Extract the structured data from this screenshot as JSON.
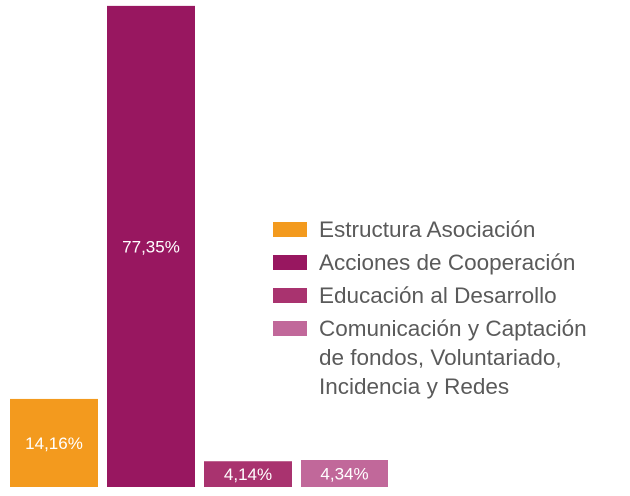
{
  "chart_data": {
    "type": "bar",
    "categories": [
      "Estructura Asociación",
      "Acciones de Cooperación",
      "Educación al Desarrollo",
      "Comunicación y Captación de fondos, Voluntariado, Incidencia y Redes"
    ],
    "values": [
      14.16,
      77.35,
      4.14,
      4.34
    ],
    "value_labels": [
      "14,16%",
      "77,35%",
      "4,14%",
      "4,34%"
    ],
    "colors": [
      "#f39a1e",
      "#981760",
      "#a9336f",
      "#c1689a"
    ],
    "title": "",
    "xlabel": "",
    "ylabel": "",
    "ylim": [
      0,
      100
    ],
    "grid": false,
    "legend_position": "right"
  },
  "legend": {
    "items": [
      {
        "lines": [
          "Estructura Asociación"
        ],
        "color": "#f39a1e"
      },
      {
        "lines": [
          "Acciones de Cooperación"
        ],
        "color": "#981760"
      },
      {
        "lines": [
          "Educación al Desarrollo"
        ],
        "color": "#a9336f"
      },
      {
        "lines": [
          "Comunicación y Captación",
          "de fondos, Voluntariado,",
          "Incidencia y Redes"
        ],
        "color": "#c1689a"
      }
    ]
  }
}
